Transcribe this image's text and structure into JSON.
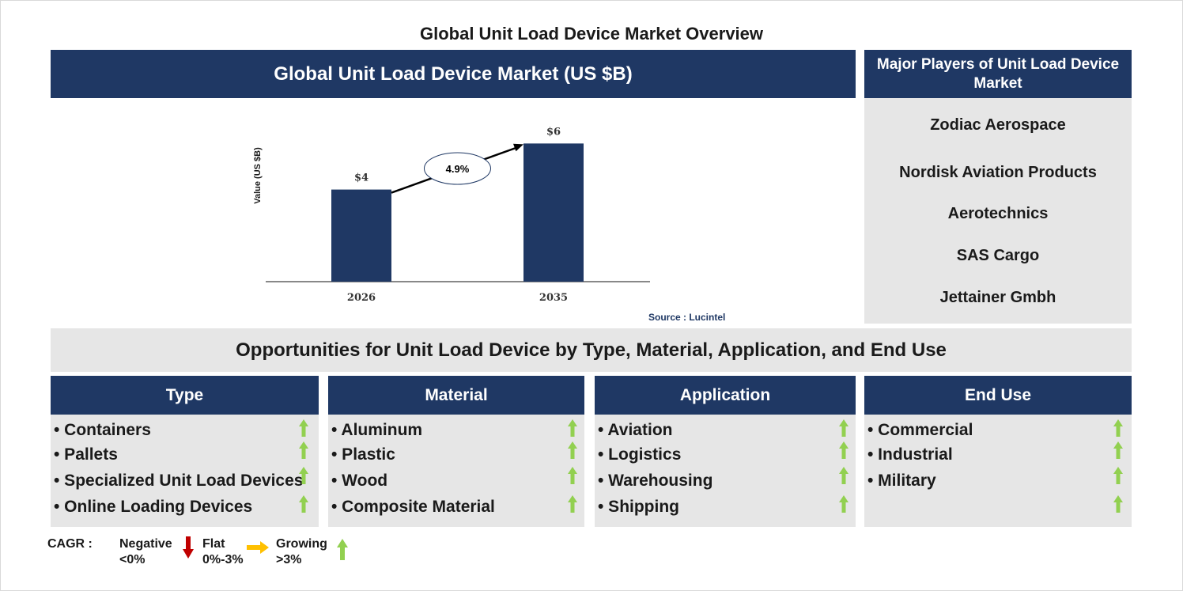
{
  "page_title": "Global Unit Load Device Market Overview",
  "chart_header": "Global Unit Load Device Market (US $B)",
  "chart_data": {
    "type": "bar",
    "categories": [
      "2026",
      "2035"
    ],
    "values": [
      4,
      6
    ],
    "value_labels": [
      "$4",
      "$6"
    ],
    "ylabel": "Value (US $B)",
    "ylim": [
      0,
      6.7
    ],
    "cagr_label": "4.9%",
    "grid": false,
    "bar_color": "#1f3864"
  },
  "source": "Source : Lucintel",
  "players": {
    "title": "Major Players of Unit Load Device Market",
    "items": [
      "Zodiac Aerospace",
      "Nordisk Aviation Products",
      "Aerotechnics",
      "SAS Cargo",
      "Jettainer Gmbh"
    ]
  },
  "opportunities_title": "Opportunities for Unit Load Device by Type, Material, Application, and End Use",
  "segments": [
    {
      "title": "Type",
      "items": [
        "• Containers",
        "• Pallets",
        "• Specialized Unit Load Devices",
        "• Online Loading Devices"
      ],
      "trends": [
        "growing",
        "growing",
        "growing",
        "growing"
      ]
    },
    {
      "title": "Material",
      "items": [
        "• Aluminum",
        "• Plastic",
        "• Wood",
        "• Composite Material"
      ],
      "trends": [
        "growing",
        "growing",
        "growing",
        "growing"
      ]
    },
    {
      "title": "Application",
      "items": [
        "• Aviation",
        "• Logistics",
        "• Warehousing",
        "• Shipping"
      ],
      "trends": [
        "growing",
        "growing",
        "growing",
        "growing"
      ]
    },
    {
      "title": "End Use",
      "items": [
        "• Commercial",
        "• Industrial",
        "• Military",
        ""
      ],
      "trends": [
        "growing",
        "growing",
        "growing",
        "growing"
      ]
    }
  ],
  "legend": {
    "label": "CAGR :",
    "negative": {
      "name": "Negative",
      "range": "<0%",
      "color": "#c00000"
    },
    "flat": {
      "name": "Flat",
      "range": "0%-3%",
      "color": "#ffc000"
    },
    "growing": {
      "name": "Growing",
      "range": ">3%",
      "color": "#92d050"
    }
  },
  "colors": {
    "navy": "#1f3864",
    "panel_grey": "#e6e6e6",
    "growth_green": "#92d050"
  }
}
